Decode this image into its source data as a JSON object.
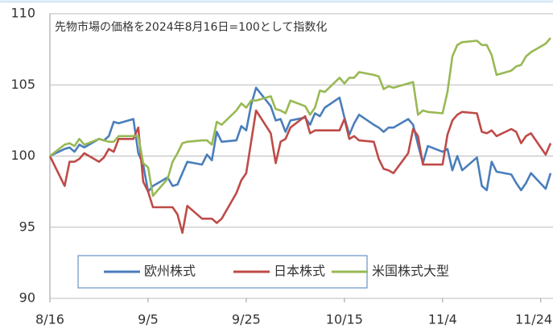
{
  "chart_data": {
    "type": "line",
    "title": "先物市場の価格を2024年8月16日=100として指数化",
    "x": [
      0,
      3,
      4,
      5,
      6,
      7,
      10,
      11,
      12,
      13,
      14,
      17,
      18,
      19,
      20,
      21,
      24,
      25,
      26,
      27,
      28,
      31,
      32,
      33,
      34,
      35,
      38,
      39,
      40,
      41,
      42,
      45,
      46,
      47,
      48,
      49,
      52,
      53,
      54,
      55,
      56,
      59,
      60,
      61,
      62,
      63,
      66,
      67,
      68,
      69,
      70,
      73,
      74,
      75,
      76,
      77,
      80,
      81,
      82,
      83,
      84,
      87,
      88,
      89,
      90,
      91,
      94,
      95,
      96,
      97,
      98,
      101,
      102
    ],
    "series": [
      {
        "name": "欧州株式",
        "color": "#4a7ebb",
        "values": [
          100.0,
          100.5,
          100.6,
          100.3,
          100.8,
          100.6,
          101.2,
          101.1,
          101.4,
          102.4,
          102.3,
          102.6,
          100.2,
          99.4,
          97.5,
          97.9,
          98.5,
          97.9,
          98.0,
          98.8,
          99.6,
          99.4,
          100.1,
          99.7,
          101.7,
          101.0,
          101.1,
          102.1,
          101.8,
          103.6,
          104.8,
          103.5,
          102.5,
          102.6,
          101.7,
          102.5,
          102.7,
          102.2,
          103.0,
          102.8,
          103.4,
          104.1,
          102.7,
          101.5,
          102.3,
          102.9,
          102.2,
          102.0,
          101.7,
          102.0,
          102.0,
          102.6,
          102.2,
          100.8,
          99.5,
          100.7,
          100.3,
          100.5,
          99.0,
          100.0,
          99.0,
          99.9,
          97.9,
          97.6,
          99.6,
          98.9,
          98.7,
          98.1,
          97.6,
          98.1,
          98.8,
          97.7,
          98.8
        ]
      },
      {
        "name": "日本株式",
        "color": "#be4b48",
        "values": [
          100.0,
          97.9,
          99.6,
          99.6,
          99.8,
          100.2,
          99.6,
          99.9,
          100.5,
          100.3,
          101.2,
          101.2,
          102.0,
          98.2,
          97.5,
          96.4,
          96.4,
          96.4,
          95.9,
          94.6,
          96.5,
          95.6,
          95.6,
          95.6,
          95.3,
          95.6,
          97.4,
          98.3,
          98.8,
          101.0,
          103.2,
          101.6,
          99.5,
          101.0,
          101.2,
          102.0,
          102.8,
          101.6,
          101.8,
          101.8,
          101.8,
          101.8,
          102.6,
          101.2,
          101.4,
          101.1,
          101.0,
          99.8,
          99.1,
          99.0,
          98.8,
          100.2,
          101.9,
          101.4,
          99.4,
          99.4,
          99.4,
          101.5,
          102.5,
          102.9,
          103.1,
          103.0,
          101.7,
          101.6,
          101.8,
          101.4,
          101.9,
          101.7,
          100.9,
          101.4,
          101.6,
          100.1,
          100.9
        ]
      },
      {
        "name": "米国株式大型",
        "color": "#98b954",
        "values": [
          100.0,
          100.8,
          100.9,
          100.7,
          101.2,
          100.8,
          101.2,
          101.1,
          101.0,
          101.0,
          101.4,
          101.4,
          101.4,
          99.5,
          99.2,
          97.2,
          98.4,
          99.6,
          100.2,
          100.9,
          101.0,
          101.1,
          101.1,
          100.8,
          102.4,
          102.2,
          103.2,
          103.7,
          103.4,
          103.9,
          103.9,
          104.2,
          103.3,
          103.2,
          103.0,
          103.9,
          103.5,
          102.9,
          103.4,
          104.6,
          104.5,
          105.5,
          105.1,
          105.5,
          105.5,
          105.9,
          105.7,
          105.6,
          104.7,
          104.9,
          104.8,
          105.1,
          105.2,
          102.9,
          103.2,
          103.1,
          103.0,
          104.5,
          107.0,
          107.8,
          108.0,
          108.1,
          107.8,
          107.8,
          107.1,
          105.7,
          106.0,
          106.3,
          106.4,
          107.0,
          107.3,
          107.9,
          108.3
        ]
      }
    ],
    "xlim": [
      0,
      102.5
    ],
    "xticks": [
      {
        "value": 0,
        "label": "8/16"
      },
      {
        "value": 20,
        "label": "9/5"
      },
      {
        "value": 40,
        "label": "9/25"
      },
      {
        "value": 60,
        "label": "10/15"
      },
      {
        "value": 80,
        "label": "11/4"
      },
      {
        "value": 100,
        "label": "11/24"
      }
    ],
    "ylim": [
      90,
      110
    ],
    "yticks": [
      90,
      95,
      100,
      105,
      110
    ],
    "grid": true
  }
}
